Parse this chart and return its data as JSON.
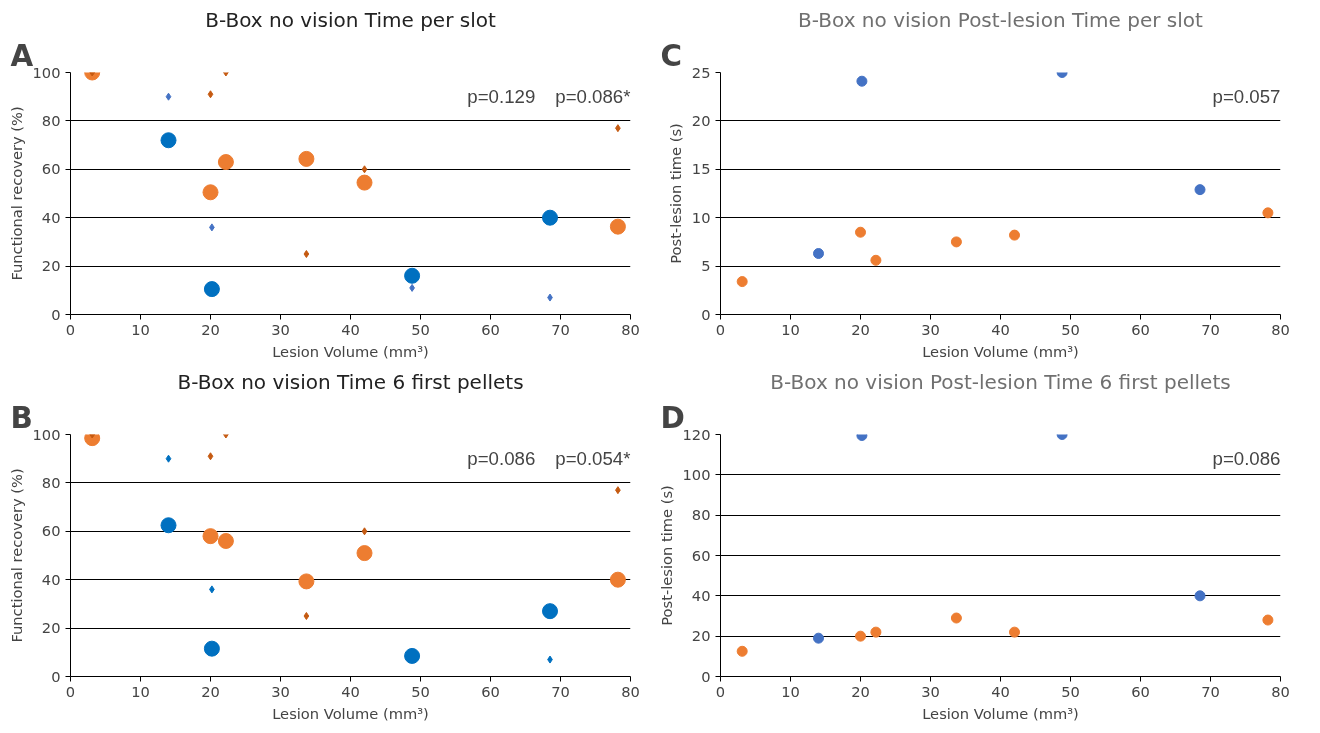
{
  "chart_data": [
    {
      "type": "scatter",
      "title": "B-Box no vision Time per slot",
      "xlabel": "Lesion Volume (mm³)",
      "ylabel": "Functional recovery (%)",
      "xlim": [
        0,
        80
      ],
      "xticks": [
        0,
        10,
        20,
        30,
        40,
        50,
        60,
        70,
        80
      ],
      "ylim": [
        0,
        100
      ],
      "yticks": [
        0,
        20,
        40,
        60,
        80,
        100
      ],
      "grid": "y",
      "annotations": [
        "A",
        "p=0.129",
        "p=0.086*"
      ],
      "series": [
        {
          "color": "#0070c0",
          "marker": "circle",
          "x": [
            14,
            20.2,
            48.8,
            68.5
          ],
          "values": [
            72,
            10.5,
            16,
            40
          ]
        },
        {
          "color": "#ed7d31",
          "marker": "circle",
          "x": [
            3.1,
            20,
            22.2,
            33.7,
            42,
            78.2
          ],
          "values": [
            100,
            50.5,
            63,
            64.3,
            54.5,
            36.3
          ]
        },
        {
          "color": "#4472c4",
          "marker": "diamond",
          "x": [
            14,
            20.2,
            48.8,
            68.5
          ],
          "values": [
            90,
            36,
            11,
            7
          ]
        },
        {
          "color": "#c55a11",
          "marker": "diamond",
          "x": [
            3.1,
            20,
            22.2,
            33.7,
            42,
            78.2
          ],
          "values": [
            100,
            91,
            100,
            25,
            60,
            77
          ]
        }
      ]
    },
    {
      "type": "scatter",
      "title": "B-Box no vision Time 6 first pellets",
      "xlabel": "Lesion Volume (mm³)",
      "ylabel": "Functional recovery (%)",
      "xlim": [
        0,
        80
      ],
      "xticks": [
        0,
        10,
        20,
        30,
        40,
        50,
        60,
        70,
        80
      ],
      "ylim": [
        0,
        100
      ],
      "yticks": [
        0,
        20,
        40,
        60,
        80,
        100
      ],
      "grid": "y",
      "annotations": [
        "B",
        "p=0.086",
        "p=0.054*"
      ],
      "series": [
        {
          "color": "#0070c0",
          "marker": "circle",
          "x": [
            14,
            20.2,
            48.8,
            68.5
          ],
          "values": [
            62.5,
            11.5,
            8.5,
            27
          ]
        },
        {
          "color": "#ed7d31",
          "marker": "circle",
          "x": [
            3.1,
            20,
            22.2,
            33.7,
            42,
            78.2
          ],
          "values": [
            98.5,
            58,
            56,
            39.3,
            51,
            40
          ]
        },
        {
          "color": "#0070c0",
          "marker": "diamond",
          "x": [
            14,
            20.2,
            48.8,
            68.5
          ],
          "values": [
            90,
            36,
            null,
            7
          ]
        },
        {
          "color": "#c55a11",
          "marker": "diamond",
          "x": [
            3.1,
            20,
            22.2,
            33.7,
            42,
            78.2
          ],
          "values": [
            100,
            91,
            100,
            25,
            60,
            77
          ]
        }
      ]
    },
    {
      "type": "scatter",
      "title": "B-Box no vision Post-lesion Time per slot",
      "xlabel": "Lesion Volume (mm³)",
      "ylabel": "Post-lesion time (s)",
      "xlim": [
        0,
        80
      ],
      "xticks": [
        0,
        10,
        20,
        30,
        40,
        50,
        60,
        70,
        80
      ],
      "ylim": [
        0,
        25
      ],
      "yticks": [
        0,
        5,
        10,
        15,
        20,
        25
      ],
      "grid": "y",
      "annotations": [
        "C",
        "p=0.057"
      ],
      "series": [
        {
          "color": "#4472c4",
          "marker": "circle",
          "x": [
            14,
            20.2,
            48.8,
            68.5
          ],
          "values": [
            6.3,
            24.1,
            25,
            12.9
          ]
        },
        {
          "color": "#ed7d31",
          "marker": "circle",
          "x": [
            3.1,
            20,
            22.2,
            33.7,
            42,
            78.2
          ],
          "values": [
            3.4,
            8.5,
            5.6,
            7.5,
            8.2,
            10.5
          ]
        }
      ]
    },
    {
      "type": "scatter",
      "title": "B-Box no vision Post-lesion Time 6 first pellets",
      "xlabel": "Lesion Volume (mm³)",
      "ylabel": "Post-lesion time (s)",
      "xlim": [
        0,
        80
      ],
      "xticks": [
        0,
        10,
        20,
        30,
        40,
        50,
        60,
        70,
        80
      ],
      "ylim": [
        0,
        120
      ],
      "yticks": [
        0,
        20,
        40,
        60,
        80,
        100,
        120
      ],
      "grid": "y",
      "annotations": [
        "D",
        "p=0.086"
      ],
      "series": [
        {
          "color": "#4472c4",
          "marker": "circle",
          "x": [
            14,
            20.2,
            48.8,
            68.5
          ],
          "values": [
            19,
            119.5,
            120,
            40
          ]
        },
        {
          "color": "#ed7d31",
          "marker": "circle",
          "x": [
            3.1,
            20,
            22.2,
            33.7,
            42,
            78.2
          ],
          "values": [
            12.5,
            20,
            22,
            29,
            22,
            28
          ]
        }
      ]
    }
  ]
}
